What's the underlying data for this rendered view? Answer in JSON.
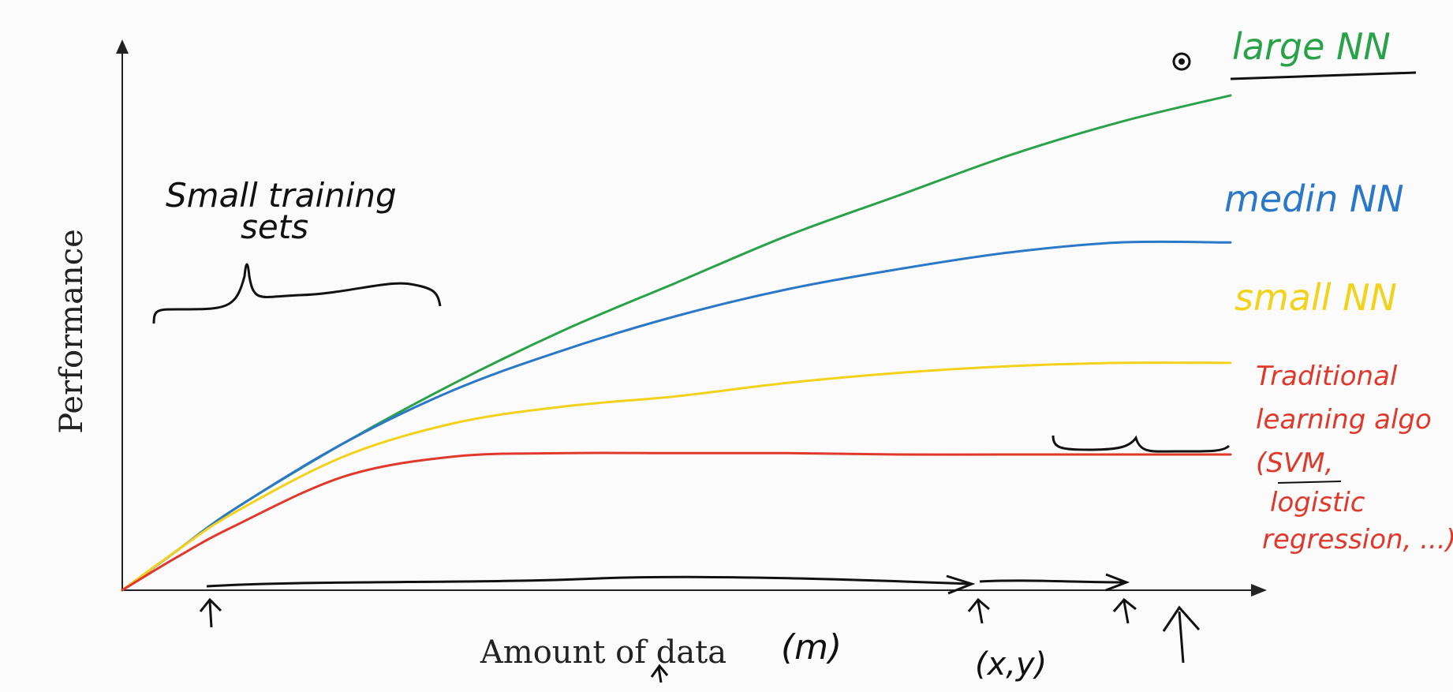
{
  "chart_data": {
    "type": "line",
    "title": "",
    "xlabel": "Amount of data",
    "ylabel": "Performance",
    "x": [
      0,
      5,
      10,
      20,
      30,
      40,
      50,
      60,
      70,
      80,
      90,
      100
    ],
    "series": [
      {
        "name": "large NN",
        "color": "#2aa24a",
        "values": [
          0,
          6,
          12,
          22,
          31,
          39,
          46,
          53,
          59,
          65,
          70,
          74
        ]
      },
      {
        "name": "medium NN",
        "color": "#2b78c8",
        "values": [
          0,
          6,
          12,
          22,
          30,
          36,
          41,
          45,
          48,
          50.5,
          52,
          52
        ]
      },
      {
        "name": "small NN",
        "color": "#f2d21b",
        "values": [
          0,
          6,
          11.5,
          20,
          25,
          27.5,
          29,
          31,
          32.5,
          33.5,
          34,
          34
        ]
      },
      {
        "name": "Traditional learning algo",
        "color": "#e0392b",
        "values": [
          0,
          5,
          9.5,
          17,
          20,
          20.5,
          20.5,
          20.5,
          20.3,
          20.3,
          20.3,
          20.3
        ]
      }
    ],
    "ylim": [
      0,
      80
    ],
    "xlim": [
      0,
      100
    ],
    "grid": false,
    "legend": "right, hand-written labels at line ends"
  },
  "labels": {
    "series_labels": [
      "large NN",
      "medin NN",
      "small NN"
    ],
    "traditional_label": [
      "Traditional",
      "learning algo",
      "(SVM,",
      "logistic",
      "regression, ...)"
    ],
    "small_sets": [
      "Small training",
      "sets"
    ],
    "m_label": "(m)",
    "xy_label": "(x,y)"
  }
}
